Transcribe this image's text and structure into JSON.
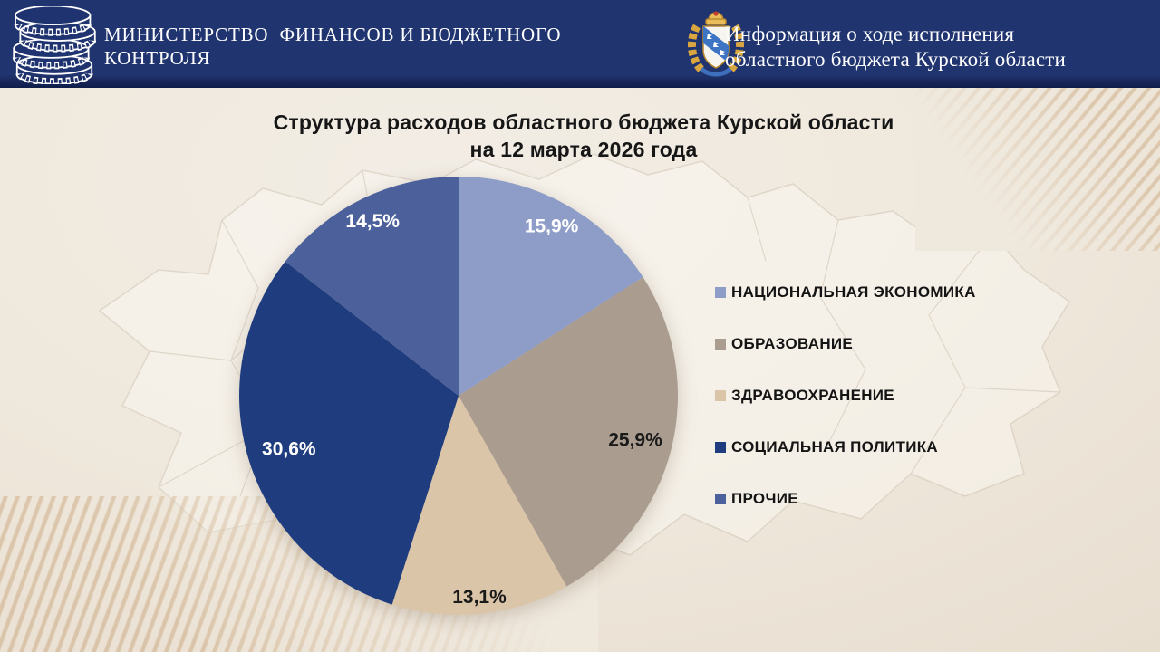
{
  "colors": {
    "header_bg": "#20346F",
    "background": "#EFE8DD",
    "stripe_accent": "#C6A074",
    "text_dark": "#161616",
    "header_text": "#FFFFFF"
  },
  "header": {
    "logo_icon": "coins-stack-icon",
    "emblem_icon": "kursk-coat-of-arms-icon",
    "ministry_title": "МИНИСТЕРСТВО  ФИНАНСОВ И БЮДЖЕТНОГО\nКОНТРОЛЯ",
    "info_title": "Информация о ходе исполнения\nобластного бюджета Курской области"
  },
  "chart_data": {
    "type": "pie",
    "title": "Структура расходов областного бюджета Курской области\nна 12 марта 2026 года",
    "unit": "%",
    "total": 100,
    "categories": [
      "НАЦИОНАЛЬНАЯ ЭКОНОМИКА",
      "ОБРАЗОВАНИЕ",
      "ЗДРАВООХРАНЕНИЕ",
      "СОЦИАЛЬНАЯ ПОЛИТИКА",
      "ПРОЧИЕ"
    ],
    "values": [
      15.9,
      25.9,
      13.1,
      30.6,
      14.5
    ],
    "labels": [
      "15,9%",
      "25,9%",
      "13,1%",
      "30,6%",
      "14,5%"
    ],
    "colors": [
      "#8D9DC7",
      "#AB9C90",
      "#DBC5A8",
      "#1E3C7E",
      "#4C619B"
    ],
    "label_colors": [
      "#FFFFFF",
      "#1A1A1A",
      "#1A1A1A",
      "#FFFFFF",
      "#FFFFFF"
    ],
    "label_radii": [
      0.885,
      0.83,
      0.92,
      0.81,
      0.89
    ],
    "start_angle_deg": 0,
    "direction": "clockwise",
    "legend_position": "right",
    "grid": false
  }
}
